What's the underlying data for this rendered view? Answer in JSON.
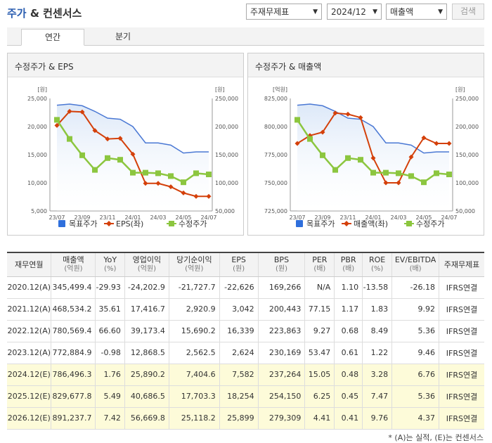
{
  "header": {
    "title_part1": "주가",
    "title_part2": "& 컨센서스",
    "select_type": "주재무제표",
    "select_period": "2024/12",
    "select_metric": "매출액",
    "search_button": "검색"
  },
  "tabs": [
    {
      "label": "연간",
      "active": true
    },
    {
      "label": "분기",
      "active": false
    }
  ],
  "charts": [
    {
      "title": "수정주가 & EPS",
      "left_unit": "[원]",
      "right_unit": "[원]",
      "left_ticks": [
        "25,000",
        "20,000",
        "15,000",
        "10,000",
        "5,000"
      ],
      "right_ticks": [
        "250,000",
        "200,000",
        "150,000",
        "100,000",
        "50,000"
      ],
      "x_labels": [
        "23/07",
        "23/09",
        "23/11",
        "24/01",
        "24/03",
        "24/05",
        "24/07"
      ],
      "legend": [
        "목표주가",
        "EPS(좌)",
        "수정주가"
      ]
    },
    {
      "title": "수정주가 & 매출액",
      "left_unit": "[억원]",
      "right_unit": "[원]",
      "left_ticks": [
        "825,000",
        "800,000",
        "775,000",
        "750,000",
        "725,000"
      ],
      "right_ticks": [
        "250,000",
        "200,000",
        "150,000",
        "100,000",
        "50,000"
      ],
      "x_labels": [
        "23/07",
        "23/09",
        "23/11",
        "24/01",
        "24/03",
        "24/05",
        "24/07"
      ],
      "legend": [
        "목표주가",
        "매출액(좌)",
        "수정주가"
      ]
    }
  ],
  "chart_data": [
    {
      "type": "line",
      "title": "수정주가 & EPS",
      "x": [
        "23/07",
        "23/08",
        "23/09",
        "23/10",
        "23/11",
        "23/12",
        "24/01",
        "24/02",
        "24/03",
        "24/04",
        "24/05",
        "24/06",
        "24/07"
      ],
      "left_range": [
        5000,
        25000
      ],
      "right_range": [
        50000,
        250000
      ],
      "series": [
        {
          "name": "목표주가",
          "axis": "right",
          "style": "area",
          "color": "#4a78d4",
          "values": [
            238000,
            240000,
            237000,
            227000,
            215000,
            213000,
            200000,
            171000,
            171000,
            167000,
            153000,
            155000,
            155000
          ]
        },
        {
          "name": "EPS(좌)",
          "axis": "left",
          "style": "line-diamond",
          "color": "#d4400a",
          "values": [
            20200,
            22700,
            22600,
            19300,
            17800,
            17900,
            15100,
            9900,
            9900,
            9300,
            8200,
            7600,
            7600
          ]
        },
        {
          "name": "수정주가",
          "axis": "right",
          "style": "line-square",
          "color": "#8cc63f",
          "values": [
            212000,
            178000,
            149000,
            123000,
            144000,
            141000,
            118000,
            118000,
            117000,
            112000,
            101000,
            117000,
            115000
          ]
        }
      ]
    },
    {
      "type": "line",
      "title": "수정주가 & 매출액",
      "x": [
        "23/07",
        "23/08",
        "23/09",
        "23/10",
        "23/11",
        "23/12",
        "24/01",
        "24/02",
        "24/03",
        "24/04",
        "24/05",
        "24/06",
        "24/07"
      ],
      "left_range": [
        725000,
        825000
      ],
      "right_range": [
        50000,
        250000
      ],
      "series": [
        {
          "name": "목표주가",
          "axis": "right",
          "style": "area",
          "color": "#4a78d4",
          "values": [
            238000,
            240000,
            237000,
            227000,
            215000,
            213000,
            200000,
            171000,
            171000,
            167000,
            153000,
            155000,
            155000
          ]
        },
        {
          "name": "매출액(좌)",
          "axis": "left",
          "style": "line-diamond",
          "color": "#d4400a",
          "values": [
            785000,
            792000,
            795000,
            812000,
            811000,
            808000,
            772000,
            750000,
            750000,
            773000,
            790000,
            785000,
            785000
          ]
        },
        {
          "name": "수정주가",
          "axis": "right",
          "style": "line-square",
          "color": "#8cc63f",
          "values": [
            212000,
            178000,
            149000,
            123000,
            144000,
            141000,
            118000,
            118000,
            117000,
            112000,
            101000,
            117000,
            115000
          ]
        }
      ]
    }
  ],
  "table": {
    "headers": [
      {
        "label": "재무연월",
        "sub": ""
      },
      {
        "label": "매출액",
        "sub": "(억원)"
      },
      {
        "label": "YoY",
        "sub": "(%)"
      },
      {
        "label": "영업이익",
        "sub": "(억원)"
      },
      {
        "label": "당기순이익",
        "sub": "(억원)"
      },
      {
        "label": "EPS",
        "sub": "(원)"
      },
      {
        "label": "BPS",
        "sub": "(원)"
      },
      {
        "label": "PER",
        "sub": "(배)"
      },
      {
        "label": "PBR",
        "sub": "(배)"
      },
      {
        "label": "ROE",
        "sub": "(%)"
      },
      {
        "label": "EV/EBITDA",
        "sub": "(배)"
      },
      {
        "label": "주재무제표",
        "sub": ""
      }
    ],
    "rows": [
      {
        "estimate": false,
        "cells": [
          "2020.12(A)",
          "345,499.4",
          "-29.93",
          "-24,202.9",
          "-21,727.7",
          "-22,626",
          "169,266",
          "N/A",
          "1.10",
          "-13.58",
          "-26.18",
          "IFRS연결"
        ]
      },
      {
        "estimate": false,
        "cells": [
          "2021.12(A)",
          "468,534.2",
          "35.61",
          "17,416.7",
          "2,920.9",
          "3,042",
          "200,443",
          "77.15",
          "1.17",
          "1.83",
          "9.92",
          "IFRS연결"
        ]
      },
      {
        "estimate": false,
        "cells": [
          "2022.12(A)",
          "780,569.4",
          "66.60",
          "39,173.4",
          "15,690.2",
          "16,339",
          "223,863",
          "9.27",
          "0.68",
          "8.49",
          "5.36",
          "IFRS연결"
        ]
      },
      {
        "estimate": false,
        "cells": [
          "2023.12(A)",
          "772,884.9",
          "-0.98",
          "12,868.5",
          "2,562.5",
          "2,624",
          "230,169",
          "53.47",
          "0.61",
          "1.22",
          "9.46",
          "IFRS연결"
        ]
      },
      {
        "estimate": true,
        "cells": [
          "2024.12(E)",
          "786,496.3",
          "1.76",
          "25,890.2",
          "7,404.6",
          "7,582",
          "237,264",
          "15.05",
          "0.48",
          "3.28",
          "6.76",
          "IFRS연결"
        ]
      },
      {
        "estimate": true,
        "cells": [
          "2025.12(E)",
          "829,677.8",
          "5.49",
          "40,686.5",
          "17,703.3",
          "18,254",
          "254,150",
          "6.25",
          "0.45",
          "7.47",
          "5.36",
          "IFRS연결"
        ]
      },
      {
        "estimate": true,
        "cells": [
          "2026.12(E)",
          "891,237.7",
          "7.42",
          "56,669.8",
          "25,118.2",
          "25,899",
          "279,309",
          "4.41",
          "0.41",
          "9.76",
          "4.37",
          "IFRS연결"
        ]
      }
    ],
    "note": "* (A)는 실적, (E)는 컨센서스"
  }
}
